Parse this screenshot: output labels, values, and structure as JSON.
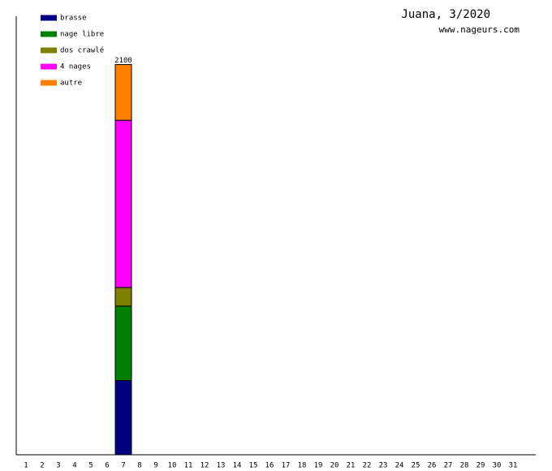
{
  "chart_data": {
    "type": "stacked-bar",
    "title": "Juana, 3/2020",
    "subtitle": "www.nageurs.com",
    "categories": [
      "1",
      "2",
      "3",
      "4",
      "5",
      "6",
      "7",
      "8",
      "9",
      "10",
      "11",
      "12",
      "13",
      "14",
      "15",
      "16",
      "17",
      "18",
      "19",
      "20",
      "21",
      "22",
      "23",
      "24",
      "25",
      "26",
      "27",
      "28",
      "29",
      "30",
      "31"
    ],
    "series": [
      {
        "name": "brasse",
        "color": "#000080",
        "values": [
          null,
          null,
          null,
          null,
          null,
          null,
          400,
          null,
          null,
          null,
          null,
          null,
          null,
          null,
          null,
          null,
          null,
          null,
          null,
          null,
          null,
          null,
          null,
          null,
          null,
          null,
          null,
          null,
          null,
          null,
          null
        ]
      },
      {
        "name": "nage libre",
        "color": "#008000",
        "values": [
          null,
          null,
          null,
          null,
          null,
          null,
          400,
          null,
          null,
          null,
          null,
          null,
          null,
          0,
          null,
          null,
          null,
          null,
          null,
          null,
          null,
          null,
          null,
          null,
          null,
          null,
          null,
          null,
          null,
          null,
          null
        ]
      },
      {
        "name": "dos crawlé",
        "color": "#808000",
        "values": [
          null,
          null,
          null,
          null,
          null,
          null,
          100,
          null,
          null,
          null,
          null,
          null,
          null,
          null,
          null,
          null,
          null,
          null,
          null,
          null,
          null,
          null,
          null,
          null,
          null,
          null,
          null,
          null,
          null,
          null,
          null
        ]
      },
      {
        "name": "4 nages",
        "color": "#ff00ff",
        "values": [
          null,
          null,
          null,
          null,
          null,
          null,
          900,
          null,
          null,
          null,
          null,
          null,
          null,
          null,
          null,
          null,
          null,
          null,
          null,
          null,
          null,
          null,
          null,
          null,
          null,
          null,
          null,
          null,
          null,
          null,
          null
        ]
      },
      {
        "name": "autre",
        "color": "#ff8000",
        "values": [
          null,
          null,
          null,
          null,
          null,
          null,
          300,
          null,
          null,
          null,
          null,
          null,
          null,
          null,
          null,
          null,
          null,
          null,
          null,
          null,
          null,
          null,
          null,
          null,
          null,
          null,
          null,
          null,
          null,
          null,
          null
        ]
      }
    ],
    "totals": [
      null,
      null,
      null,
      null,
      null,
      null,
      2100,
      null,
      null,
      null,
      null,
      null,
      null,
      null,
      null,
      null,
      null,
      null,
      null,
      null,
      null,
      null,
      null,
      null,
      null,
      null,
      null,
      null,
      null,
      null,
      null
    ],
    "ylim": [
      0,
      2360
    ],
    "legend": "top-left"
  }
}
